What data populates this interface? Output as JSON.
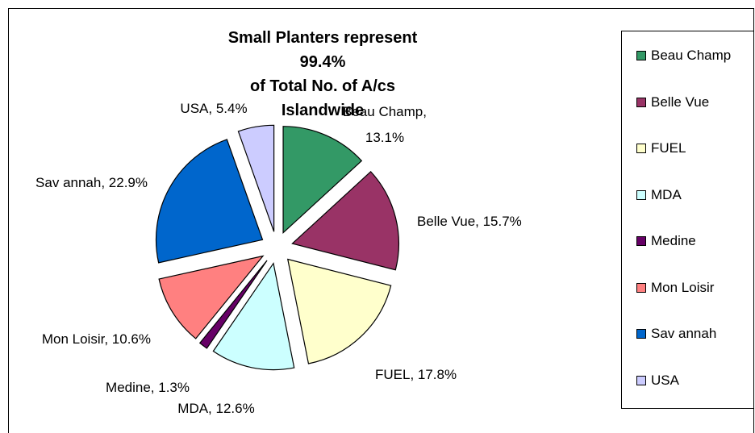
{
  "chart_data": {
    "type": "pie",
    "title_line1": "Small Planters represent 99.4%",
    "title_line2": "of Total No. of A/cs Islandwide",
    "slices": [
      {
        "name": "Beau Champ",
        "value": 13.1,
        "label_line1": "Beau Champ,",
        "label_line2": "13.1%",
        "color": "#339966"
      },
      {
        "name": "Belle Vue",
        "value": 15.7,
        "label_line1": "Belle Vue, 15.7%",
        "label_line2": "",
        "color": "#993366"
      },
      {
        "name": "FUEL",
        "value": 17.8,
        "label_line1": "FUEL, 17.8%",
        "label_line2": "",
        "color": "#FFFFCC"
      },
      {
        "name": "MDA",
        "value": 12.6,
        "label_line1": "MDA, 12.6%",
        "label_line2": "",
        "color": "#CCFFFF"
      },
      {
        "name": "Medine",
        "value": 1.3,
        "label_line1": "Medine, 1.3%",
        "label_line2": "",
        "color": "#660066"
      },
      {
        "name": "Mon Loisir",
        "value": 10.6,
        "label_line1": "Mon Loisir, 10.6%",
        "label_line2": "",
        "color": "#FF8080"
      },
      {
        "name": "Savannah",
        "value": 22.9,
        "label_line1": "Sav annah, 22.9%",
        "label_line2": "",
        "color": "#0066CC"
      },
      {
        "name": "USA",
        "value": 5.4,
        "label_line1": "USA, 5.4%",
        "label_line2": "",
        "color": "#CCCCFF"
      }
    ],
    "legend": [
      "Beau Champ",
      "Belle Vue",
      "FUEL",
      "MDA",
      "Medine",
      "Mon Loisir",
      "Sav annah",
      "USA"
    ],
    "legend_position": "right",
    "exploded": true
  }
}
